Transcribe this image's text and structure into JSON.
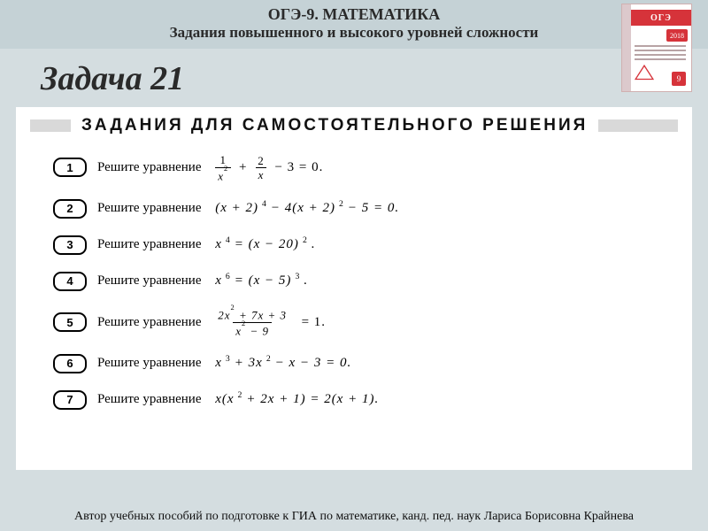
{
  "colors": {
    "page_bg": "#d4dde0",
    "header_bg": "#c5d2d6",
    "panel_bg": "#ffffff",
    "heading_bar": "#d9d9d9",
    "badge_border": "#000000",
    "book_red": "#d6333a",
    "book_stripe": "#dcc9cc"
  },
  "header": {
    "title": "ОГЭ-9.  МАТЕМАТИКА",
    "subtitle": "Задания повышенного и высокого уровней сложности"
  },
  "book": {
    "brand": "ОГЭ",
    "year": "2018",
    "class": "9"
  },
  "slide_title": "Задача 21",
  "section_heading": "ЗАДАНИЯ ДЛЯ САМОСТОЯТЕЛЬНОГО РЕШЕНИЯ",
  "problems": [
    {
      "n": "1",
      "prompt": "Решите  уравнение",
      "eq_key": "eq1"
    },
    {
      "n": "2",
      "prompt": "Решите  уравнение",
      "eq_key": "eq2"
    },
    {
      "n": "3",
      "prompt": "Решите  уравнение",
      "eq_key": "eq3"
    },
    {
      "n": "4",
      "prompt": "Решите  уравнение",
      "eq_key": "eq4"
    },
    {
      "n": "5",
      "prompt": "Решите  уравнение",
      "eq_key": "eq5"
    },
    {
      "n": "6",
      "prompt": "Решите  уравнение",
      "eq_key": "eq6"
    },
    {
      "n": "7",
      "prompt": "Решите  уравнение",
      "eq_key": "eq7"
    }
  ],
  "equations": {
    "eq1": {
      "type": "frac_sum",
      "t1_num": "1",
      "t1_den_base": "x",
      "t1_den_exp": "2",
      "t2_num": "2",
      "t2_den": "x",
      "tail": "− 3 = 0."
    },
    "eq2": {
      "type": "plain",
      "text": "(x + 2)⁴ − 4(x + 2)² − 5 = 0."
    },
    "eq3": {
      "type": "plain",
      "text": "x⁴ = (x − 20)²."
    },
    "eq4": {
      "type": "plain",
      "text": "x⁶ = (x − 5)³."
    },
    "eq5": {
      "type": "rational_eq1",
      "num": "2x² + 7x + 3",
      "den": "x² − 9",
      "rhs": "= 1."
    },
    "eq6": {
      "type": "plain",
      "text": "x³ + 3x² − x − 3 = 0."
    },
    "eq7": {
      "type": "plain",
      "text": "x(x² + 2x + 1) = 2(x + 1)."
    }
  },
  "footer": "Автор учебных пособий по подготовке к ГИА по математике,  канд. пед. наук  Лариса Борисовна Крайнева"
}
